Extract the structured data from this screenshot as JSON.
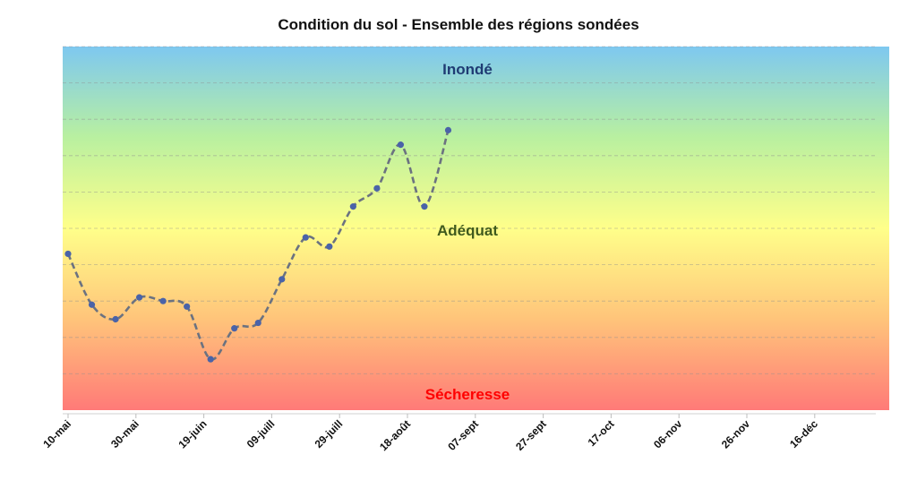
{
  "chart_data": {
    "type": "line",
    "title": "Condition du sol - Ensemble des régions sondées",
    "x_tick_labels": [
      "10-mai",
      "30-mai",
      "19-juin",
      "09-juill",
      "29-juill",
      "18-août",
      "07-sept",
      "27-sept",
      "17-oct",
      "06-nov",
      "26-nov",
      "16-déc"
    ],
    "zones": [
      {
        "label": "Inondé",
        "color": "#1f3b73"
      },
      {
        "label": "Adéquat",
        "color": "#3f5a1e"
      },
      {
        "label": "Sécheresse",
        "color": "#ff0000"
      }
    ],
    "background_gradient": [
      "#7ec8f0",
      "#b9f0a0",
      "#ffff8a",
      "#ffc47a",
      "#ff7a78"
    ],
    "ylim": [
      0,
      10
    ],
    "grid": "horizontal-dashed",
    "series": [
      {
        "color": "#4a63a8",
        "line_color": "#6b7280",
        "points": [
          {
            "x": "2025-05-10",
            "y": 4.3
          },
          {
            "x": "2025-05-17",
            "y": 2.9
          },
          {
            "x": "2025-05-24",
            "y": 2.5
          },
          {
            "x": "2025-05-31",
            "y": 3.1
          },
          {
            "x": "2025-06-07",
            "y": 3.0
          },
          {
            "x": "2025-06-14",
            "y": 2.85
          },
          {
            "x": "2025-06-21",
            "y": 1.4
          },
          {
            "x": "2025-06-28",
            "y": 2.25
          },
          {
            "x": "2025-07-05",
            "y": 2.4
          },
          {
            "x": "2025-07-12",
            "y": 3.6
          },
          {
            "x": "2025-07-19",
            "y": 4.75
          },
          {
            "x": "2025-07-26",
            "y": 4.5
          },
          {
            "x": "2025-08-02",
            "y": 5.6
          },
          {
            "x": "2025-08-09",
            "y": 6.1
          },
          {
            "x": "2025-08-16",
            "y": 7.3
          },
          {
            "x": "2025-08-23",
            "y": 5.6
          },
          {
            "x": "2025-08-30",
            "y": 7.7
          }
        ]
      }
    ]
  }
}
